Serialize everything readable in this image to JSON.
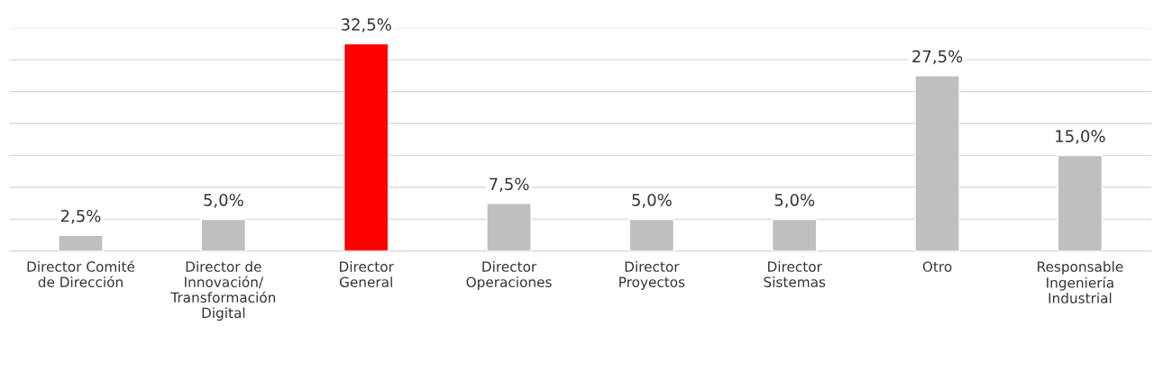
{
  "chart_data": {
    "type": "bar",
    "categories": [
      "Director Comité\nde Dirección",
      "Director de\nInnovación/\nTransformación\nDigital",
      "Director\nGeneral",
      "Director\nOperaciones",
      "Director\nProyectos",
      "Director\nSistemas",
      "Otro",
      "Responsable\nIngeniería\nIndustrial"
    ],
    "values": [
      2.5,
      5.0,
      32.5,
      7.5,
      5.0,
      5.0,
      27.5,
      15.0
    ],
    "colors": [
      "#bfbfbf",
      "#bfbfbf",
      "#ff0000",
      "#bfbfbf",
      "#bfbfbf",
      "#bfbfbf",
      "#bfbfbf",
      "#bfbfbf"
    ],
    "value_labels": [
      "2,5%",
      "5,0%",
      "32,5%",
      "7,5%",
      "5,0%",
      "5,0%",
      "27,5%",
      "15,0%"
    ],
    "ylim": [
      0,
      35
    ],
    "yticks": [
      {
        "value": 0,
        "label": null
      },
      {
        "value": 5,
        "label": null
      },
      {
        "value": 10,
        "label": null
      },
      {
        "value": 15,
        "label": null
      },
      {
        "value": 20,
        "label": null
      },
      {
        "value": 25,
        "label": null
      },
      {
        "value": 30,
        "label": null
      },
      {
        "value": 35,
        "label": null
      }
    ],
    "grid": "y",
    "tick_labels": "x",
    "legend": false
  }
}
